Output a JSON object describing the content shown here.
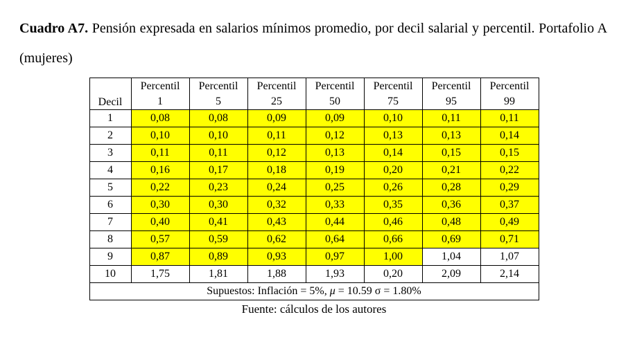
{
  "title": {
    "label": "Cuadro A7.",
    "text": " Pensión expresada en salarios mínimos promedio, por decil salarial y percentil. Portafolio A (mujeres)"
  },
  "table": {
    "col0_header": "Decil",
    "percentil_label": "Percentil",
    "percentiles": [
      "1",
      "5",
      "25",
      "50",
      "75",
      "95",
      "99"
    ],
    "highlight_color": "#ffff00",
    "rows": [
      {
        "decil": "1",
        "values": [
          "0,08",
          "0,08",
          "0,09",
          "0,09",
          "0,10",
          "0,11",
          "0,11"
        ],
        "highlighted": 7
      },
      {
        "decil": "2",
        "values": [
          "0,10",
          "0,10",
          "0,11",
          "0,12",
          "0,13",
          "0,13",
          "0,14"
        ],
        "highlighted": 7
      },
      {
        "decil": "3",
        "values": [
          "0,11",
          "0,11",
          "0,12",
          "0,13",
          "0,14",
          "0,15",
          "0,15"
        ],
        "highlighted": 7
      },
      {
        "decil": "4",
        "values": [
          "0,16",
          "0,17",
          "0,18",
          "0,19",
          "0,20",
          "0,21",
          "0,22"
        ],
        "highlighted": 7
      },
      {
        "decil": "5",
        "values": [
          "0,22",
          "0,23",
          "0,24",
          "0,25",
          "0,26",
          "0,28",
          "0,29"
        ],
        "highlighted": 7
      },
      {
        "decil": "6",
        "values": [
          "0,30",
          "0,30",
          "0,32",
          "0,33",
          "0,35",
          "0,36",
          "0,37"
        ],
        "highlighted": 7
      },
      {
        "decil": "7",
        "values": [
          "0,40",
          "0,41",
          "0,43",
          "0,44",
          "0,46",
          "0,48",
          "0,49"
        ],
        "highlighted": 7
      },
      {
        "decil": "8",
        "values": [
          "0,57",
          "0,59",
          "0,62",
          "0,64",
          "0,66",
          "0,69",
          "0,71"
        ],
        "highlighted": 7
      },
      {
        "decil": "9",
        "values": [
          "0,87",
          "0,89",
          "0,93",
          "0,97",
          "1,00",
          "1,04",
          "1,07"
        ],
        "highlighted": 5
      },
      {
        "decil": "10",
        "values": [
          "1,75",
          "1,81",
          "1,88",
          "1,93",
          "0,20",
          "2,09",
          "2,14"
        ],
        "highlighted": 0
      }
    ],
    "footer": {
      "prefix": "Supuestos: Inflación = 5%,  ",
      "mu": "μ",
      "rest": " = 10.59 σ = 1.80%"
    }
  },
  "source": "Fuente: cálculos de los autores"
}
